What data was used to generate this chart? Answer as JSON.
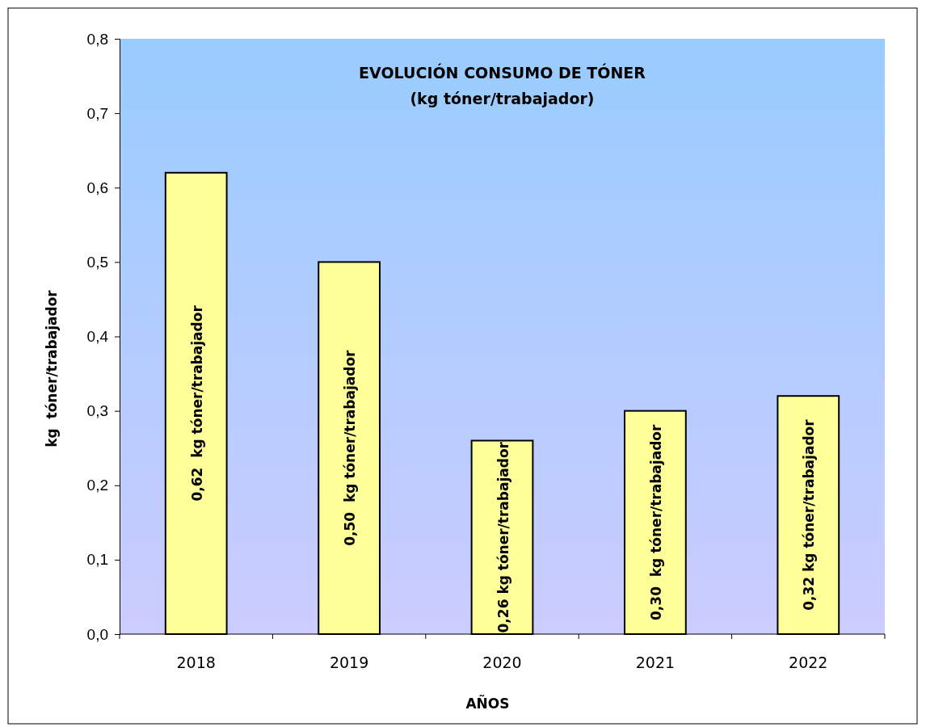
{
  "chart_data": {
    "type": "bar",
    "title": "EVOLUCIÓN CONSUMO DE TÓNER",
    "subtitle": "(kg tóner/trabajador)",
    "xlabel": "AÑOS",
    "ylabel": "kg  tóner/trabajador",
    "categories": [
      "2018",
      "2019",
      "2020",
      "2021",
      "2022"
    ],
    "values": [
      0.62,
      0.5,
      0.26,
      0.3,
      0.32
    ],
    "value_labels": [
      "0,62  kg tóner/trabajador",
      "0,50  kg tóner/trabajador",
      "0,26 kg tóner/trabajador",
      "0,30  kg tóner/trabajador",
      "0,32 kg tóner/trabajador"
    ],
    "color": "#ffff99",
    "ylim": [
      0,
      0.8
    ],
    "yticks": [
      {
        "value": 0,
        "label": "0,0"
      },
      {
        "value": 0.1,
        "label": "0,1"
      },
      {
        "value": 0.2,
        "label": "0,2"
      },
      {
        "value": 0.3,
        "label": "0,3"
      },
      {
        "value": 0.4,
        "label": "0,4"
      },
      {
        "value": 0.5,
        "label": "0,5"
      },
      {
        "value": 0.6,
        "label": "0,6"
      },
      {
        "value": 0.7,
        "label": "0,7"
      },
      {
        "value": 0.8,
        "label": "0,8"
      }
    ],
    "grid": false
  }
}
